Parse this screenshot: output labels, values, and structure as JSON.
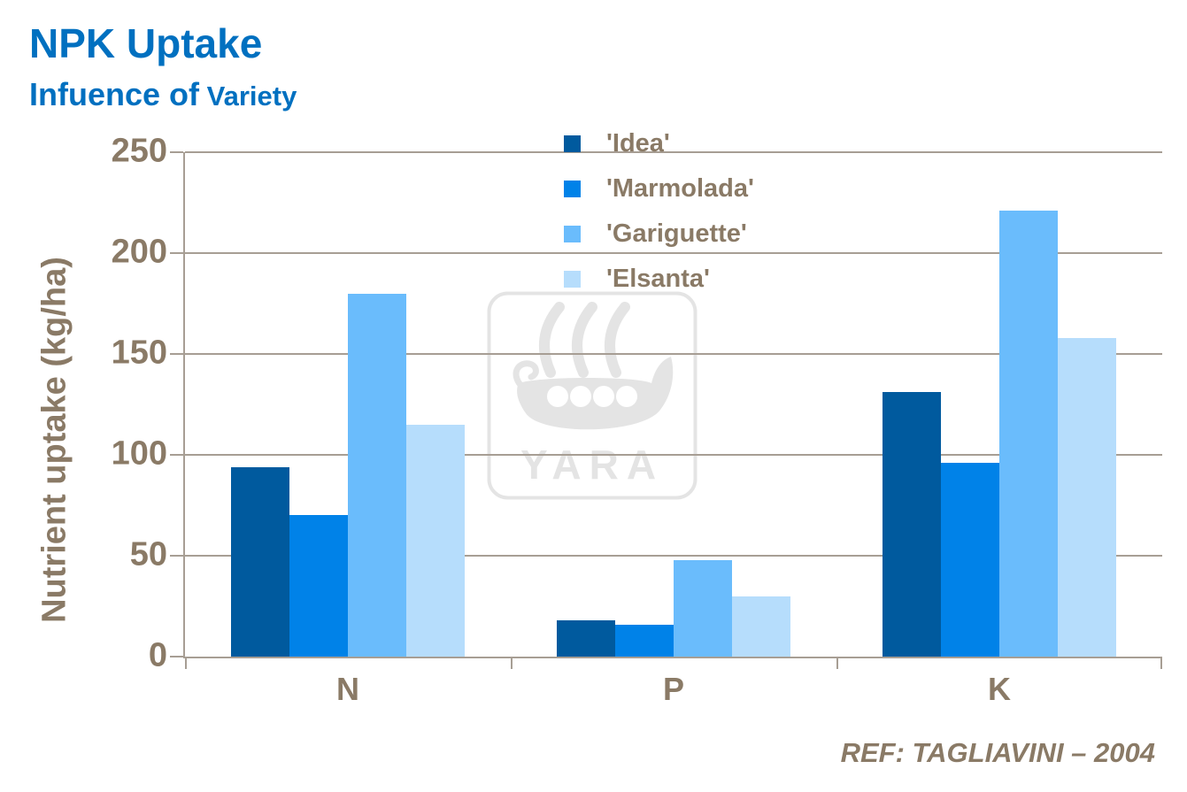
{
  "title": "NPK Uptake",
  "subtitle": {
    "part1": "Infuence of",
    "part2": " Variety"
  },
  "footer": {
    "reference": "REF: TAGLIAVINI – 2004"
  },
  "watermark": {
    "label": "YARA"
  },
  "colors": {
    "title": "#0070C0",
    "text": "#8A7A66",
    "axis": "#A79E94",
    "watermark": "#E4E4E4",
    "background": "#FFFFFF"
  },
  "chart_data": {
    "type": "bar",
    "title": "NPK Uptake",
    "subtitle": "Infuence of Variety",
    "categories": [
      "N",
      "P",
      "K"
    ],
    "series": [
      {
        "name": "'Idea'",
        "color": "#005A9E",
        "values": [
          94,
          18,
          131
        ]
      },
      {
        "name": "'Marmolada'",
        "color": "#0082E8",
        "values": [
          70,
          16,
          96
        ]
      },
      {
        "name": "'Gariguette'",
        "color": "#6ABCFC",
        "values": [
          180,
          48,
          221
        ]
      },
      {
        "name": "'Elsanta'",
        "color": "#B6DDFC",
        "values": [
          115,
          30,
          158
        ]
      }
    ],
    "xlabel": "",
    "ylabel": "Nutrient uptake (kg/ha)",
    "ylim": [
      0,
      250
    ],
    "yticks": [
      250,
      200,
      150,
      100,
      50,
      0
    ],
    "grid": true,
    "legend_position": "inside-top-center",
    "annotation": "REF: TAGLIAVINI – 2004"
  }
}
